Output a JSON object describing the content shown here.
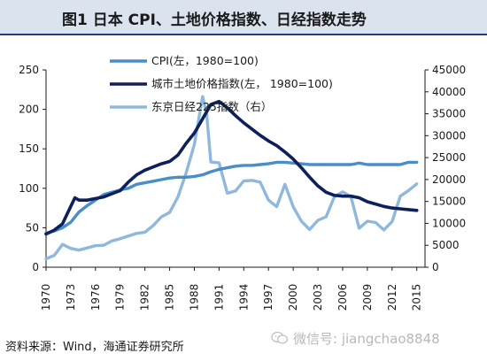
{
  "header": {
    "title": "图1  日本 CPI、土地价格指数、日经指数走势"
  },
  "source": "资料来源：Wind，海通证券研究所",
  "watermark": "微信号: jiangchao8848",
  "colors": {
    "cpi": "#4a8ec6",
    "land": "#0d1f5c",
    "nikkei": "#8fb8dc",
    "title_bg": "#dbe3ee"
  },
  "chart_data": {
    "type": "line",
    "xlim": [
      1970,
      2016
    ],
    "y_left": {
      "lim": [
        0,
        250
      ],
      "ticks": [
        "0",
        "50",
        "100",
        "150",
        "200",
        "250"
      ],
      "tick_values": [
        0,
        50,
        100,
        150,
        200,
        250
      ]
    },
    "y_right": {
      "lim": [
        0,
        45000
      ],
      "ticks": [
        "0",
        "5000",
        "10000",
        "15000",
        "20000",
        "25000",
        "30000",
        "35000",
        "40000",
        "45000"
      ],
      "tick_values": [
        0,
        5000,
        10000,
        15000,
        20000,
        25000,
        30000,
        35000,
        40000,
        45000
      ]
    },
    "x_ticks": [
      "1970",
      "1973",
      "1976",
      "1979",
      "1982",
      "1985",
      "1988",
      "1991",
      "1994",
      "1997",
      "2000",
      "2003",
      "2006",
      "2009",
      "2012",
      "2015"
    ],
    "x_tick_values": [
      1970,
      1973,
      1976,
      1979,
      1982,
      1985,
      1988,
      1991,
      1994,
      1997,
      2000,
      2003,
      2006,
      2009,
      2012,
      2015
    ],
    "legend_position": "top",
    "series": [
      {
        "name": "CPI(左，1980=100)",
        "axis": "left",
        "x": [
          1970,
          1971,
          1972,
          1973,
          1974,
          1975,
          1976,
          1977,
          1978,
          1979,
          1980,
          1981,
          1982,
          1983,
          1984,
          1985,
          1986,
          1987,
          1988,
          1989,
          1990,
          1991,
          1992,
          1993,
          1994,
          1995,
          1996,
          1997,
          1998,
          1999,
          2000,
          2001,
          2002,
          2003,
          2004,
          2005,
          2006,
          2007,
          2008,
          2009,
          2010,
          2011,
          2012,
          2013,
          2014,
          2015
        ],
        "values": [
          43,
          46,
          50,
          57,
          70,
          78,
          85,
          92,
          95,
          98,
          100,
          105,
          107,
          109,
          111,
          113,
          114,
          114,
          115,
          117,
          121,
          124,
          126,
          128,
          129,
          129,
          130,
          131,
          133,
          133,
          132,
          131,
          130,
          130,
          130,
          130,
          130,
          130,
          132,
          130,
          130,
          130,
          130,
          130,
          133,
          133
        ]
      },
      {
        "name": "城市土地价格指数(左， 1980=100)",
        "axis": "left",
        "x": [
          1970,
          1971,
          1972,
          1973,
          1973.5,
          1974,
          1975,
          1976,
          1977,
          1978,
          1979,
          1980,
          1981,
          1982,
          1983,
          1984,
          1985,
          1986,
          1987,
          1988,
          1989,
          1990,
          1991,
          1992,
          1993,
          1994,
          1995,
          1996,
          1997,
          1998,
          1999,
          2000,
          2001,
          2002,
          2003,
          2004,
          2005,
          2006,
          2007,
          2008,
          2009,
          2010,
          2011,
          2012,
          2013,
          2014,
          2015
        ],
        "values": [
          42,
          47,
          55,
          77,
          88,
          85,
          85,
          87,
          89,
          93,
          97,
          108,
          117,
          123,
          127,
          131,
          134,
          142,
          157,
          170,
          188,
          206,
          210,
          202,
          192,
          183,
          175,
          167,
          160,
          154,
          146,
          137,
          126,
          114,
          103,
          95,
          91,
          90,
          90,
          88,
          83,
          80,
          77,
          75,
          74,
          73,
          72
        ]
      },
      {
        "name": "东京日经225指数（右）",
        "axis": "right",
        "x": [
          1970,
          1971,
          1972,
          1973,
          1974,
          1975,
          1976,
          1977,
          1978,
          1979,
          1980,
          1981,
          1982,
          1983,
          1984,
          1985,
          1986,
          1987,
          1988,
          1989,
          1989.5,
          1990,
          1991,
          1992,
          1993,
          1994,
          1995,
          1996,
          1997,
          1998,
          1999,
          2000,
          2001,
          2002,
          2003,
          2004,
          2005,
          2006,
          2007,
          2008,
          2009,
          2010,
          2011,
          2012,
          2013,
          2014,
          2015
        ],
        "values": [
          1900,
          2700,
          5200,
          4300,
          3900,
          4400,
          4900,
          5000,
          6000,
          6500,
          7100,
          7700,
          8000,
          9500,
          11500,
          12500,
          16000,
          21500,
          28000,
          38900,
          35000,
          24000,
          23800,
          16900,
          17400,
          19700,
          19800,
          19400,
          15300,
          13800,
          18900,
          13800,
          10500,
          8600,
          10700,
          11500,
          16100,
          17200,
          16100,
          8900,
          10500,
          10200,
          8500,
          10400,
          16200,
          17500,
          19000
        ]
      }
    ]
  }
}
